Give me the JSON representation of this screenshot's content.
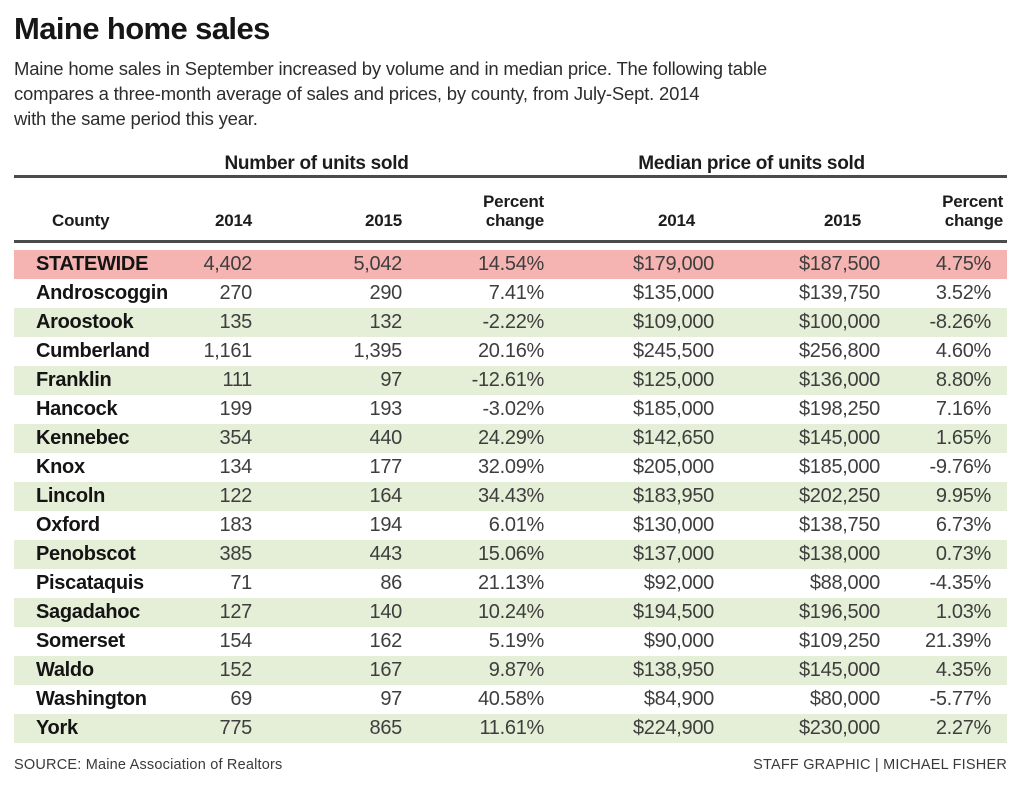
{
  "chart_data": {
    "type": "table",
    "title": "Maine home sales",
    "subtitle_lines": [
      "Maine home sales in September increased by volume and in median price. The following table",
      "compares a three-month average of sales and prices, by county, from July-Sept. 2014",
      "with the same period this year."
    ],
    "group_headers": {
      "units": "Number of units sold",
      "price": "Median price of units sold"
    },
    "columns": [
      "County",
      "2014",
      "2015",
      "Percent change",
      "2014",
      "2015",
      "Percent change"
    ],
    "rows": [
      {
        "county": "STATEWIDE",
        "units_2014": "4,402",
        "units_2015": "5,042",
        "units_pct_change": "14.54%",
        "price_2014": "$179,000",
        "price_2015": "$187,500",
        "price_pct_change": "4.75%"
      },
      {
        "county": "Androscoggin",
        "units_2014": "270",
        "units_2015": "290",
        "units_pct_change": "7.41%",
        "price_2014": "$135,000",
        "price_2015": "$139,750",
        "price_pct_change": "3.52%"
      },
      {
        "county": "Aroostook",
        "units_2014": "135",
        "units_2015": "132",
        "units_pct_change": "-2.22%",
        "price_2014": "$109,000",
        "price_2015": "$100,000",
        "price_pct_change": "-8.26%"
      },
      {
        "county": "Cumberland",
        "units_2014": "1,161",
        "units_2015": "1,395",
        "units_pct_change": "20.16%",
        "price_2014": "$245,500",
        "price_2015": "$256,800",
        "price_pct_change": "4.60%"
      },
      {
        "county": "Franklin",
        "units_2014": "111",
        "units_2015": "97",
        "units_pct_change": "-12.61%",
        "price_2014": "$125,000",
        "price_2015": "$136,000",
        "price_pct_change": "8.80%"
      },
      {
        "county": "Hancock",
        "units_2014": "199",
        "units_2015": "193",
        "units_pct_change": "-3.02%",
        "price_2014": "$185,000",
        "price_2015": "$198,250",
        "price_pct_change": "7.16%"
      },
      {
        "county": "Kennebec",
        "units_2014": "354",
        "units_2015": "440",
        "units_pct_change": "24.29%",
        "price_2014": "$142,650",
        "price_2015": "$145,000",
        "price_pct_change": "1.65%"
      },
      {
        "county": "Knox",
        "units_2014": "134",
        "units_2015": "177",
        "units_pct_change": "32.09%",
        "price_2014": "$205,000",
        "price_2015": "$185,000",
        "price_pct_change": "-9.76%"
      },
      {
        "county": "Lincoln",
        "units_2014": "122",
        "units_2015": "164",
        "units_pct_change": "34.43%",
        "price_2014": "$183,950",
        "price_2015": "$202,250",
        "price_pct_change": "9.95%"
      },
      {
        "county": "Oxford",
        "units_2014": "183",
        "units_2015": "194",
        "units_pct_change": "6.01%",
        "price_2014": "$130,000",
        "price_2015": "$138,750",
        "price_pct_change": "6.73%"
      },
      {
        "county": "Penobscot",
        "units_2014": "385",
        "units_2015": "443",
        "units_pct_change": "15.06%",
        "price_2014": "$137,000",
        "price_2015": "$138,000",
        "price_pct_change": "0.73%"
      },
      {
        "county": "Piscataquis",
        "units_2014": "71",
        "units_2015": "86",
        "units_pct_change": "21.13%",
        "price_2014": "$92,000",
        "price_2015": "$88,000",
        "price_pct_change": "-4.35%"
      },
      {
        "county": "Sagadahoc",
        "units_2014": "127",
        "units_2015": "140",
        "units_pct_change": "10.24%",
        "price_2014": "$194,500",
        "price_2015": "$196,500",
        "price_pct_change": "1.03%"
      },
      {
        "county": "Somerset",
        "units_2014": "154",
        "units_2015": "162",
        "units_pct_change": "5.19%",
        "price_2014": "$90,000",
        "price_2015": "$109,250",
        "price_pct_change": "21.39%"
      },
      {
        "county": "Waldo",
        "units_2014": "152",
        "units_2015": "167",
        "units_pct_change": "9.87%",
        "price_2014": "$138,950",
        "price_2015": "$145,000",
        "price_pct_change": "4.35%"
      },
      {
        "county": "Washington",
        "units_2014": "69",
        "units_2015": "97",
        "units_pct_change": "40.58%",
        "price_2014": "$84,900",
        "price_2015": "$80,000",
        "price_pct_change": "-5.77%"
      },
      {
        "county": "York",
        "units_2014": "775",
        "units_2015": "865",
        "units_pct_change": "11.61%",
        "price_2014": "$224,900",
        "price_2015": "$230,000",
        "price_pct_change": "2.27%"
      }
    ],
    "source": "SOURCE: Maine Association of Realtors",
    "credit": "STAFF GRAPHIC | MICHAEL FISHER",
    "colors": {
      "statewide_row_bg": "#f5b3b2",
      "alt_row_bg": "#e5eed6",
      "rule": "#4b4b4b"
    },
    "layout_hints": {
      "grid": "horizontal rules above and below column headers",
      "row_striping": "STATEWIDE pink, then alternating white / pale green"
    }
  }
}
